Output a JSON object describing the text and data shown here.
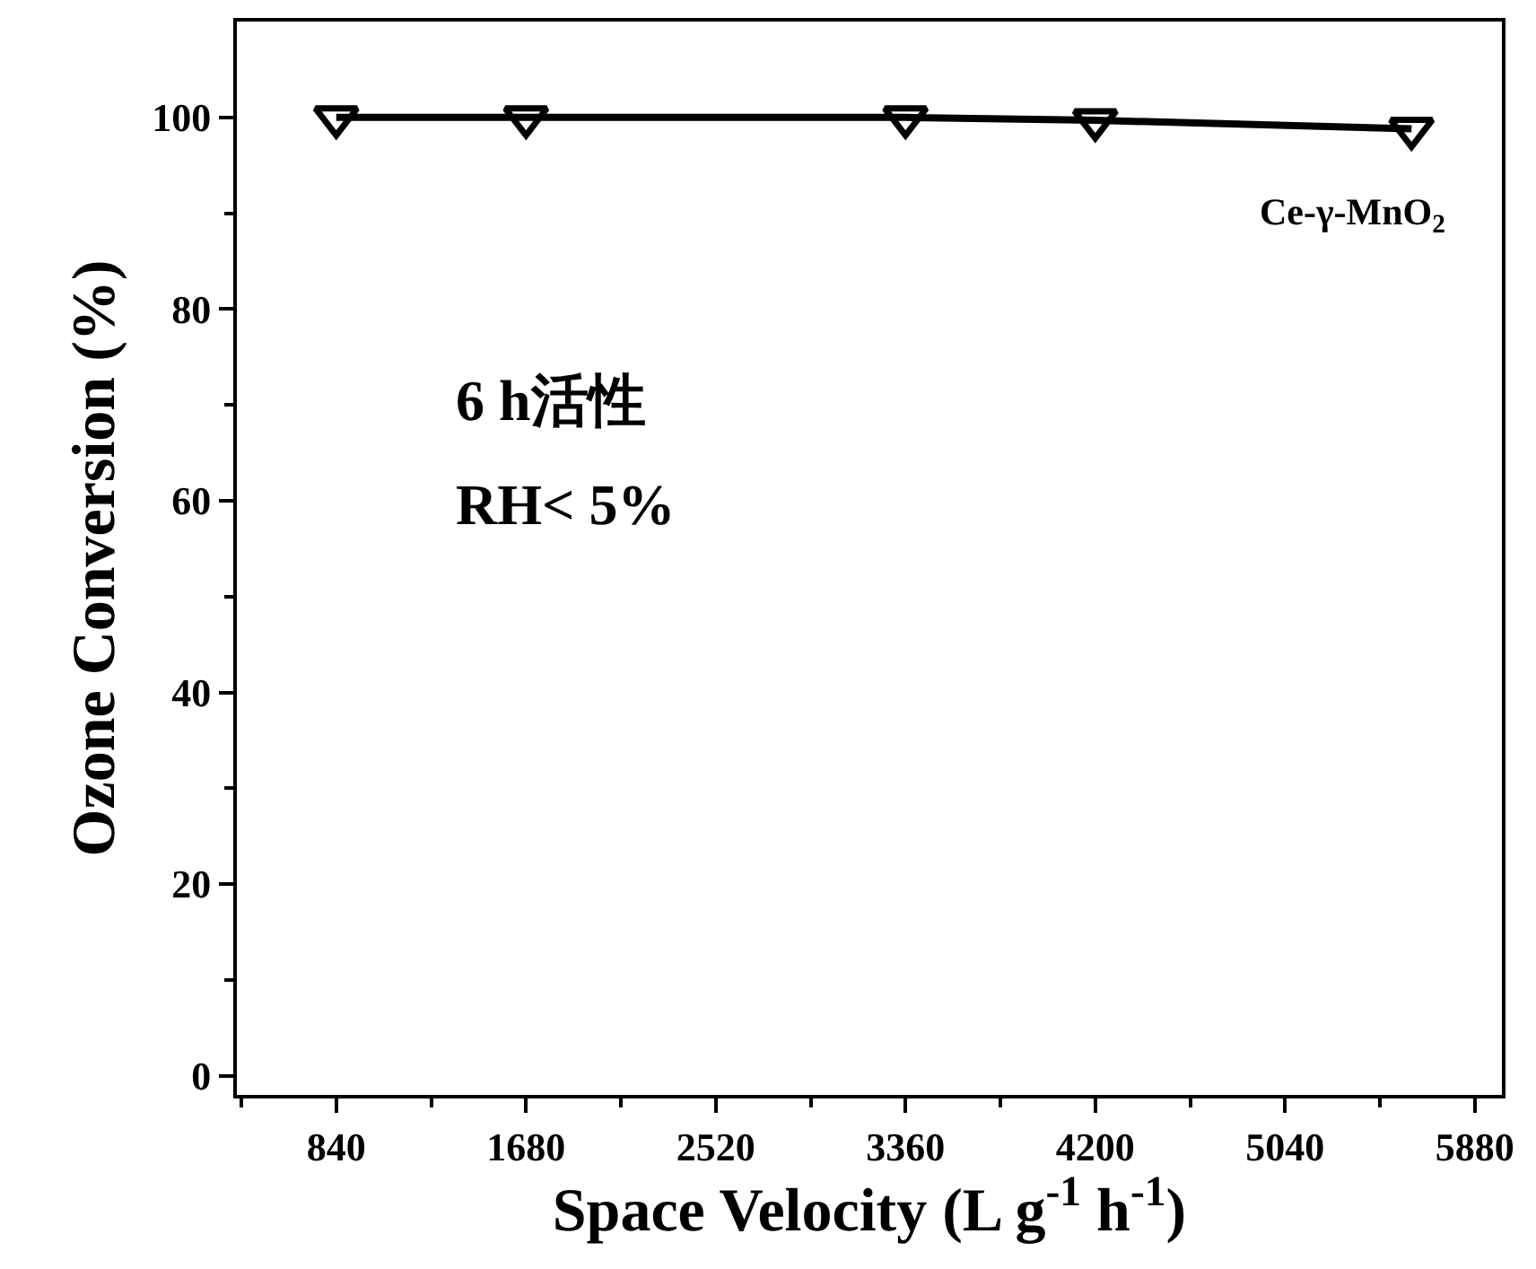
{
  "chart_data": {
    "type": "line",
    "xlabel": "Space Velocity (L g$^{-1}$ h$^{-1}$)",
    "ylabel": "Ozone Conversion (%)",
    "x": [
      840,
      1680,
      3360,
      4200,
      5600
    ],
    "series": [
      {
        "name": "Ce-γ-MnO$_{2}$",
        "color": "#000000",
        "values": [
          100,
          100,
          100,
          99.7,
          98.8
        ]
      }
    ],
    "xlim": [
      400,
      6000
    ],
    "ylim": [
      -2,
      110
    ],
    "xticks": [
      {
        "value": 420,
        "label": null
      },
      840,
      {
        "value": 1260,
        "label": null
      },
      1680,
      {
        "value": 2100,
        "label": null
      },
      2520,
      {
        "value": 2940,
        "label": null
      },
      3360,
      {
        "value": 3780,
        "label": null
      },
      4200,
      {
        "value": 4620,
        "label": null
      },
      5040,
      {
        "value": 5460,
        "label": null
      },
      5880
    ],
    "yticks": [
      0,
      {
        "value": 10,
        "label": null
      },
      20,
      {
        "value": 30,
        "label": null
      },
      40,
      {
        "value": 50,
        "label": null
      },
      60,
      {
        "value": 70,
        "label": null
      },
      80,
      {
        "value": 90,
        "label": null
      },
      100
    ],
    "annotations": [
      "6 h活性",
      "RH< 5%"
    ],
    "marker": "triangle-down",
    "line_style": "solid"
  }
}
